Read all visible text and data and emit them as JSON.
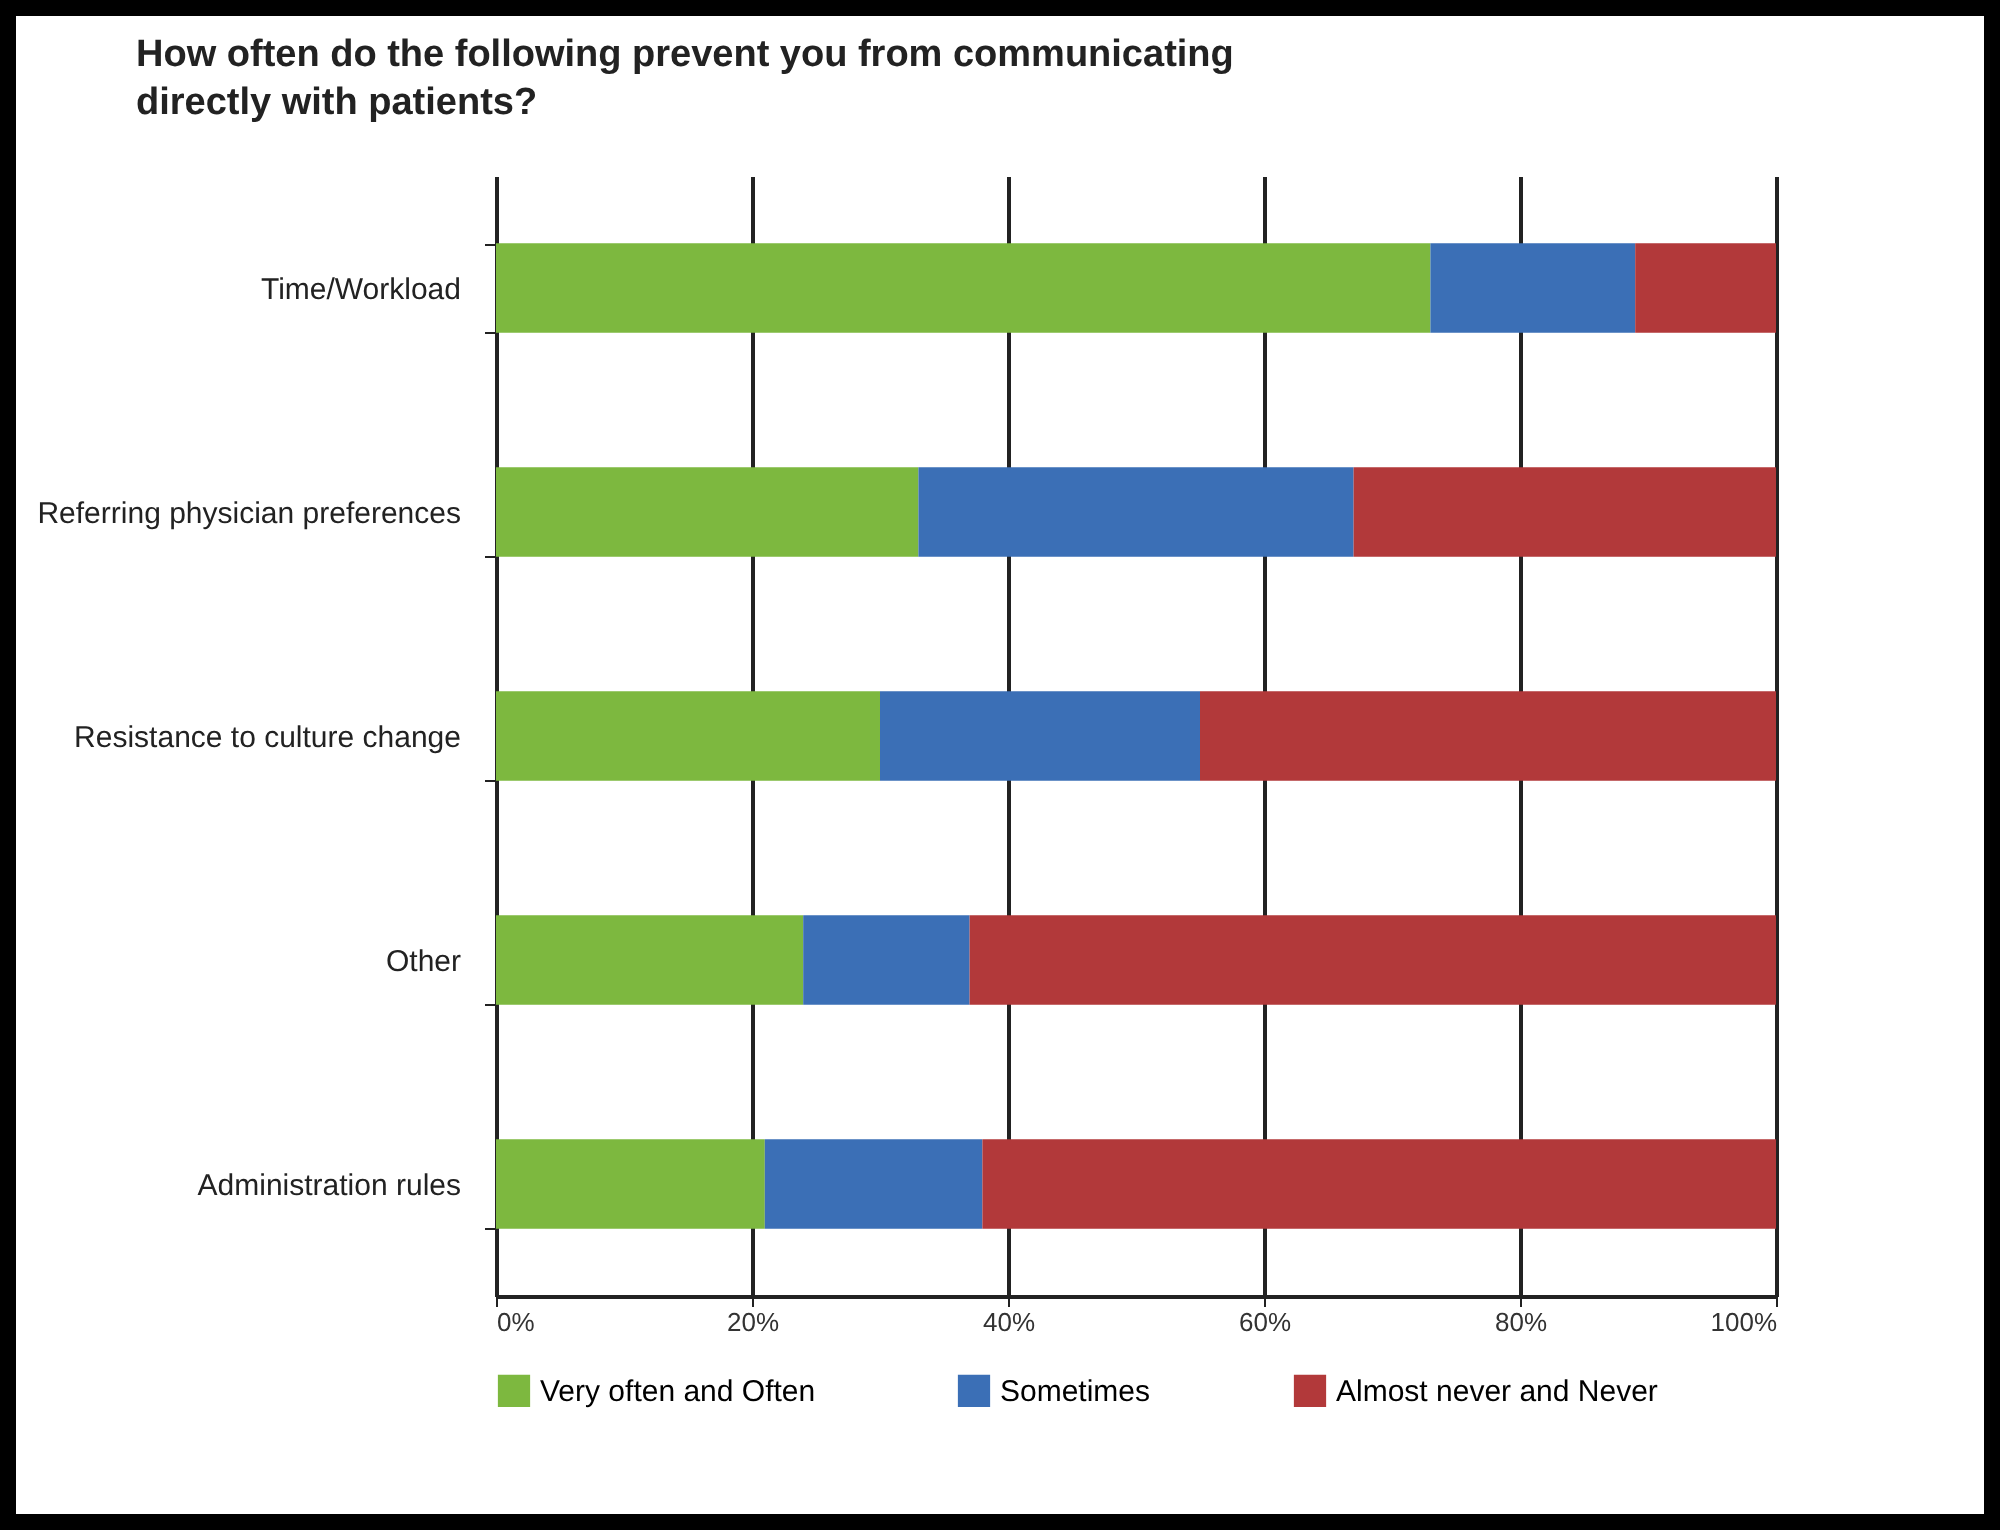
{
  "chart_data": {
    "type": "bar",
    "orientation": "horizontal",
    "stacked": true,
    "title": "How often do the following prevent you from communicating directly with patients?",
    "categories": [
      "Time/Workload",
      "Referring physician preferences",
      "Resistance to culture change",
      "Other",
      "Administration rules"
    ],
    "series": [
      {
        "name": "Very often and Often",
        "color": "#7db83f",
        "values": [
          73,
          33,
          30,
          24,
          21
        ]
      },
      {
        "name": "Sometimes",
        "color": "#3b6fb6",
        "values": [
          16,
          34,
          25,
          13,
          17
        ]
      },
      {
        "name": "Almost never and Never",
        "color": "#b2393a",
        "values": [
          11,
          33,
          45,
          63,
          62
        ]
      }
    ],
    "xlim": [
      0,
      100
    ],
    "xticks": [
      {
        "value": 0,
        "label": "0%"
      },
      {
        "value": 20,
        "label": "20%"
      },
      {
        "value": 40,
        "label": "40%"
      },
      {
        "value": 60,
        "label": "60%"
      },
      {
        "value": 80,
        "label": "80%"
      },
      {
        "value": 100,
        "label": "100%"
      }
    ],
    "grid": "x",
    "legend": "bottom"
  }
}
